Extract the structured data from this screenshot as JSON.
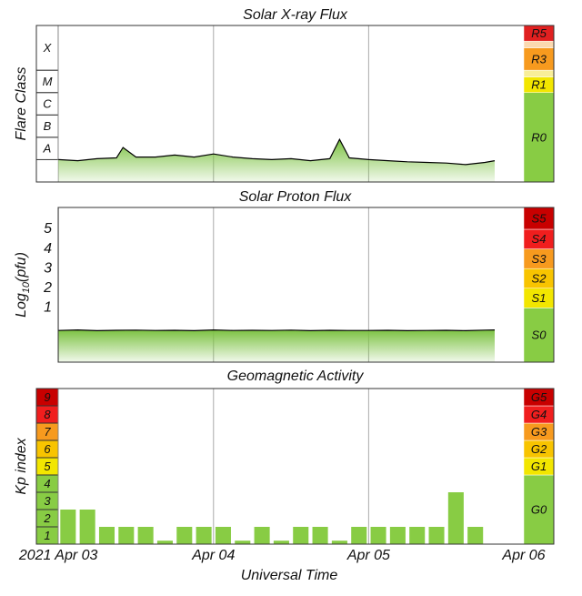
{
  "chart_data": [
    {
      "type": "line",
      "title": "Solar X-ray Flux",
      "y_label": "Flare Class",
      "log_scale": true,
      "ylim": [
        1e-09,
        0.01
      ],
      "xlim": [
        "2021-04-02 20:36",
        "2021-04-06 00:00"
      ],
      "x": [
        "2021-04-03 00:00",
        "2021-04-03 03:00",
        "2021-04-03 06:00",
        "2021-04-03 09:00",
        "2021-04-03 10:00",
        "2021-04-03 12:00",
        "2021-04-03 15:00",
        "2021-04-03 18:00",
        "2021-04-03 21:00",
        "2021-04-04 00:00",
        "2021-04-04 03:00",
        "2021-04-04 06:00",
        "2021-04-04 09:00",
        "2021-04-04 12:00",
        "2021-04-04 15:00",
        "2021-04-04 18:00",
        "2021-04-04 19:30",
        "2021-04-04 21:00",
        "2021-04-05 00:00",
        "2021-04-05 03:00",
        "2021-04-05 06:00",
        "2021-04-05 09:00",
        "2021-04-05 12:00",
        "2021-04-05 15:00",
        "2021-04-05 18:00",
        "2021-04-05 19:30"
      ],
      "values": [
        1e-08,
        9e-09,
        1.1e-08,
        1.2e-08,
        3.5e-08,
        1.3e-08,
        1.3e-08,
        1.6e-08,
        1.3e-08,
        1.8e-08,
        1.3e-08,
        1.1e-08,
        1e-08,
        1.1e-08,
        9e-09,
        1.1e-08,
        8e-08,
        1.2e-08,
        1e-08,
        9e-09,
        8e-09,
        7.5e-09,
        7e-09,
        6e-09,
        7.5e-09,
        9e-09
      ],
      "line_color": "#000000",
      "fill_color": "#7cc242",
      "left_scale": [
        {
          "label": "A",
          "from": 1e-08,
          "to": 1e-07,
          "color": "#ffffff"
        },
        {
          "label": "B",
          "from": 1e-07,
          "to": 1e-06,
          "color": "#ffffff"
        },
        {
          "label": "C",
          "from": 1e-06,
          "to": 1e-05,
          "color": "#ffffff"
        },
        {
          "label": "M",
          "from": 1e-05,
          "to": 0.0001,
          "color": "#ffffff"
        },
        {
          "label": "X",
          "from": 0.0001,
          "to": 0.01,
          "color": "#ffffff"
        }
      ],
      "right_scale": [
        {
          "label": "R0",
          "from": 1e-09,
          "to": 1e-05,
          "color": "#88cc44"
        },
        {
          "label": "R1",
          "from": 1e-05,
          "to": 5e-05,
          "color": "#f2e600"
        },
        {
          "label": null,
          "from": 5e-05,
          "to": 0.0001,
          "color": "#f8ee98"
        },
        {
          "label": "R3",
          "from": 0.0001,
          "to": 0.001,
          "color": "#f79a1e"
        },
        {
          "label": null,
          "from": 0.001,
          "to": 0.002,
          "color": "#fbd9b0"
        },
        {
          "label": "R5",
          "from": 0.002,
          "to": 0.01,
          "color": "#e02020"
        }
      ]
    },
    {
      "type": "line",
      "title": "Solar Proton Flux",
      "y_label": [
        "Log",
        "10",
        "(pfu)"
      ],
      "ylim": [
        -1.76,
        6.11
      ],
      "yticks": [
        1,
        2,
        3,
        4,
        5
      ],
      "xlim": [
        "2021-04-02 20:36",
        "2021-04-06 00:00"
      ],
      "x": [
        "2021-04-03 00:00",
        "2021-04-03 03:00",
        "2021-04-03 06:00",
        "2021-04-03 09:00",
        "2021-04-03 12:00",
        "2021-04-03 15:00",
        "2021-04-03 18:00",
        "2021-04-03 21:00",
        "2021-04-04 00:00",
        "2021-04-04 03:00",
        "2021-04-04 06:00",
        "2021-04-04 09:00",
        "2021-04-04 12:00",
        "2021-04-04 15:00",
        "2021-04-04 18:00",
        "2021-04-04 21:00",
        "2021-04-05 00:00",
        "2021-04-05 03:00",
        "2021-04-05 06:00",
        "2021-04-05 09:00",
        "2021-04-05 12:00",
        "2021-04-05 15:00",
        "2021-04-05 18:00",
        "2021-04-05 19:30"
      ],
      "values": [
        -0.15,
        -0.12,
        -0.16,
        -0.14,
        -0.13,
        -0.15,
        -0.14,
        -0.16,
        -0.12,
        -0.15,
        -0.14,
        -0.15,
        -0.13,
        -0.16,
        -0.14,
        -0.15,
        -0.15,
        -0.14,
        -0.16,
        -0.15,
        -0.14,
        -0.16,
        -0.13,
        -0.12
      ],
      "line_color": "#000000",
      "fill_color": "#7cc242",
      "right_scale": [
        {
          "label": "S0",
          "from": -1.76,
          "to": 1,
          "color": "#88cc44"
        },
        {
          "label": "S1",
          "from": 1,
          "to": 2,
          "color": "#f2e600"
        },
        {
          "label": "S2",
          "from": 2,
          "to": 3,
          "color": "#f8c400"
        },
        {
          "label": "S3",
          "from": 3,
          "to": 4,
          "color": "#f79a1e"
        },
        {
          "label": "S4",
          "from": 4,
          "to": 5,
          "color": "#f01e1e"
        },
        {
          "label": "S5",
          "from": 5,
          "to": 6.11,
          "color": "#c80000"
        }
      ]
    },
    {
      "type": "bar",
      "title": "Geomagnetic Activity",
      "y_label": "Kp index",
      "x_label": "Universal Time",
      "ylim": [
        0,
        9
      ],
      "xlim": [
        "2021-04-02 20:36",
        "2021-04-06 00:00"
      ],
      "xticks": [
        {
          "value": "2021-04-03 00:00",
          "label": "2021 Apr 03"
        },
        {
          "value": "2021-04-04 00:00",
          "label": "Apr 04"
        },
        {
          "value": "2021-04-05 00:00",
          "label": "Apr 05"
        },
        {
          "value": "2021-04-06 00:00",
          "label": "Apr 06"
        }
      ],
      "x": [
        "2021-04-03 00:00",
        "2021-04-03 03:00",
        "2021-04-03 06:00",
        "2021-04-03 09:00",
        "2021-04-03 12:00",
        "2021-04-03 15:00",
        "2021-04-03 18:00",
        "2021-04-03 21:00",
        "2021-04-04 00:00",
        "2021-04-04 03:00",
        "2021-04-04 06:00",
        "2021-04-04 09:00",
        "2021-04-04 12:00",
        "2021-04-04 15:00",
        "2021-04-04 18:00",
        "2021-04-04 21:00",
        "2021-04-05 00:00",
        "2021-04-05 03:00",
        "2021-04-05 06:00",
        "2021-04-05 09:00",
        "2021-04-05 12:00",
        "2021-04-05 15:00"
      ],
      "values": [
        2,
        2,
        1,
        1,
        1,
        0.2,
        1,
        1,
        1,
        0.2,
        1,
        0.2,
        1,
        1,
        0.2,
        1,
        1,
        1,
        1,
        1,
        3,
        1
      ],
      "color": "#88cc44",
      "left_scale": [
        {
          "label": "1",
          "from": 0,
          "to": 1,
          "color": "#88cc44"
        },
        {
          "label": "2",
          "from": 1,
          "to": 2,
          "color": "#88cc44"
        },
        {
          "label": "3",
          "from": 2,
          "to": 3,
          "color": "#88cc44"
        },
        {
          "label": "4",
          "from": 3,
          "to": 4,
          "color": "#88cc44"
        },
        {
          "label": "5",
          "from": 4,
          "to": 5,
          "color": "#f2e600"
        },
        {
          "label": "6",
          "from": 5,
          "to": 6,
          "color": "#f8c400"
        },
        {
          "label": "7",
          "from": 6,
          "to": 7,
          "color": "#f79a1e"
        },
        {
          "label": "8",
          "from": 7,
          "to": 8,
          "color": "#f01e1e"
        },
        {
          "label": "9",
          "from": 8,
          "to": 9,
          "color": "#c80000"
        }
      ],
      "right_scale": [
        {
          "label": "G0",
          "from": 0,
          "to": 4,
          "color": "#88cc44"
        },
        {
          "label": "G1",
          "from": 4,
          "to": 5,
          "color": "#f2e600"
        },
        {
          "label": "G2",
          "from": 5,
          "to": 6,
          "color": "#f8c400"
        },
        {
          "label": "G3",
          "from": 6,
          "to": 7,
          "color": "#f79a1e"
        },
        {
          "label": "G4",
          "from": 7,
          "to": 8,
          "color": "#f01e1e"
        },
        {
          "label": "G5",
          "from": 8,
          "to": 9,
          "color": "#c80000"
        }
      ]
    }
  ]
}
